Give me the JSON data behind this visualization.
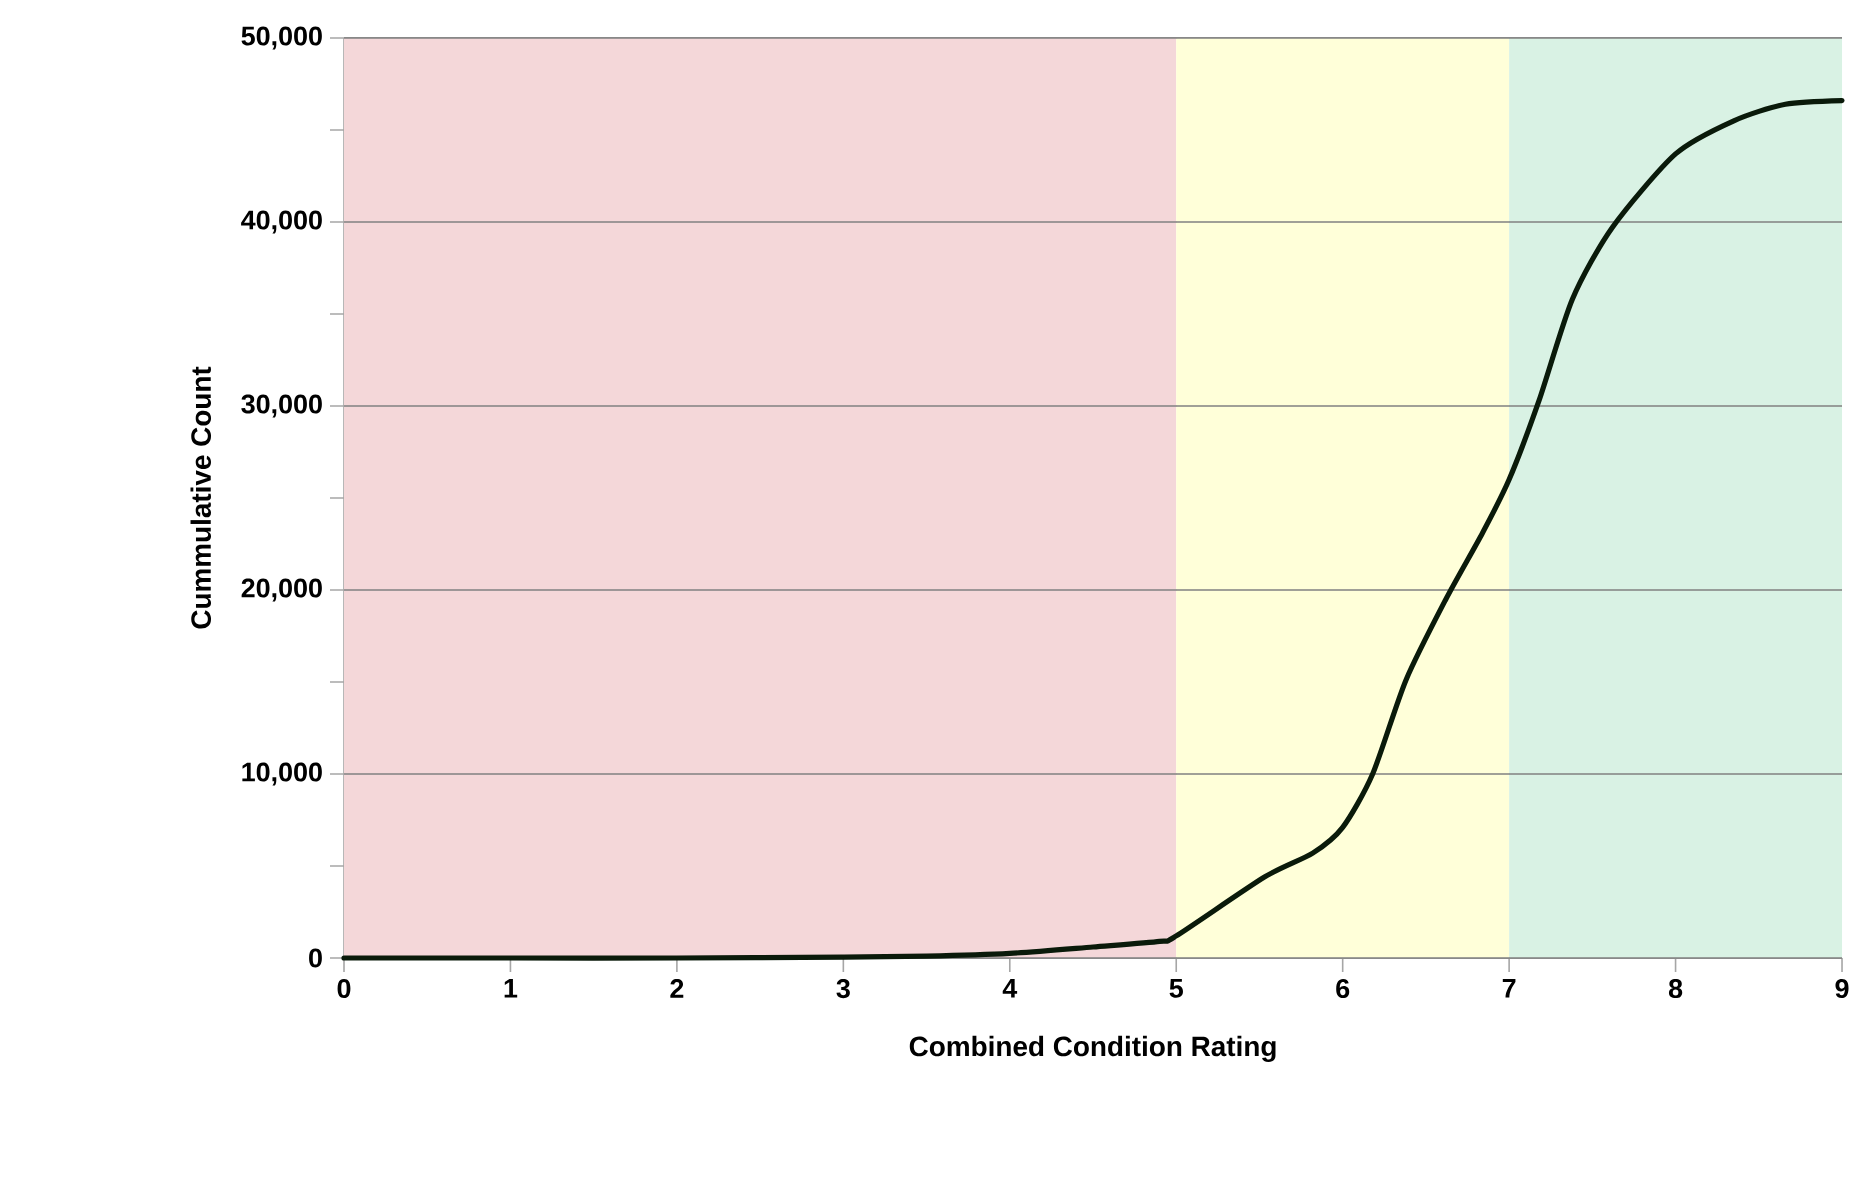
{
  "chart_data": {
    "type": "line",
    "xlabel": "Combined Condition Rating",
    "ylabel": "Cummulative Count",
    "x": [
      0,
      1,
      2,
      3,
      3.5,
      4,
      4.5,
      4.9,
      5,
      5.53,
      5.82,
      6,
      6.18,
      6.38,
      6.62,
      6.84,
      7,
      7.18,
      7.38,
      7.62,
      8,
      8.35,
      8.66,
      9
    ],
    "series": [
      {
        "color": "#0a1a0a",
        "values": [
          0,
          0,
          0,
          50,
          100,
          250,
          600,
          900,
          1200,
          4400,
          5700,
          7100,
          10000,
          15100,
          19500,
          23100,
          26000,
          30300,
          35800,
          39700,
          43700,
          45500,
          46400,
          46600
        ]
      }
    ],
    "xlim": [
      0,
      9
    ],
    "xticks": [
      0,
      1,
      2,
      3,
      4,
      5,
      6,
      7,
      8,
      9
    ],
    "ylim": [
      0,
      50000
    ],
    "yticks": [
      {
        "value": 0,
        "label": "0"
      },
      {
        "value": 5000,
        "label": null
      },
      {
        "value": 10000,
        "label": "10,000"
      },
      {
        "value": 15000,
        "label": null
      },
      {
        "value": 20000,
        "label": "20,000"
      },
      {
        "value": 25000,
        "label": null
      },
      {
        "value": 30000,
        "label": "30,000"
      },
      {
        "value": 35000,
        "label": null
      },
      {
        "value": 40000,
        "label": "40,000"
      },
      {
        "value": 45000,
        "label": null
      },
      {
        "value": 50000,
        "label": "50,000"
      }
    ],
    "bands": [
      {
        "axis": "x",
        "from": 0,
        "to": 5,
        "color": "#f4d7d9"
      },
      {
        "axis": "x",
        "from": 5,
        "to": 7,
        "color": "#ffffd9"
      },
      {
        "axis": "x",
        "from": 7,
        "to": 9,
        "color": "#d9f2e4"
      }
    ],
    "grid": "y",
    "legend": false,
    "marker": "none",
    "line_style": "solid"
  }
}
